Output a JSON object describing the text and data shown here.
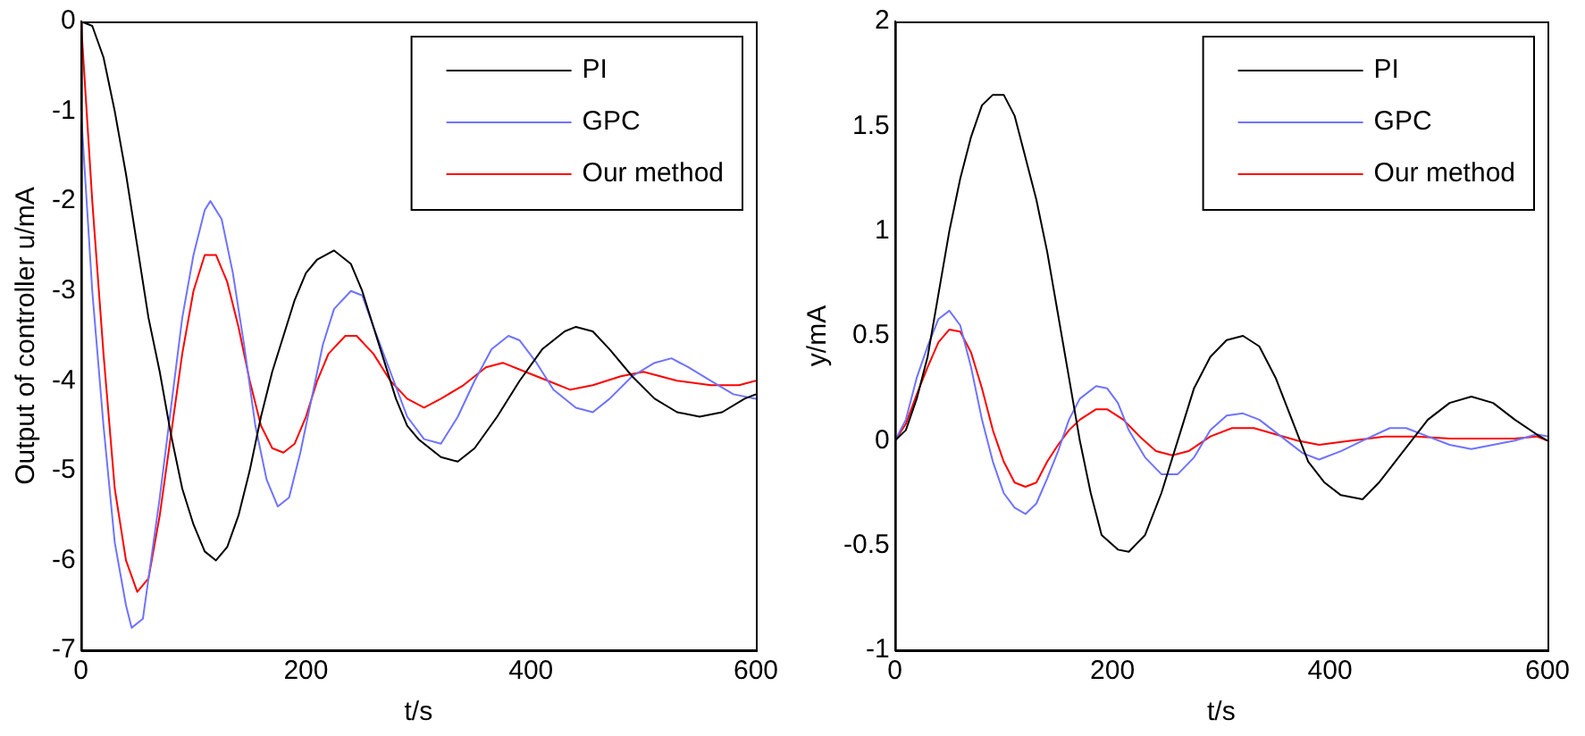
{
  "chart_data": [
    {
      "type": "line",
      "xlabel": "t/s",
      "ylabel": "Output of controller u/mA",
      "xlim": [
        0,
        600
      ],
      "xticks": [
        0,
        200,
        400,
        600
      ],
      "ylim": [
        -7,
        0
      ],
      "yticks": [
        -7,
        -6,
        -5,
        -4,
        -3,
        -2,
        -1,
        0
      ],
      "grid": false,
      "legend": "top right",
      "marker": "none",
      "series": [
        {
          "name": "PI",
          "color": "#000000",
          "x": [
            0,
            10,
            20,
            30,
            40,
            50,
            60,
            70,
            80,
            90,
            100,
            110,
            120,
            130,
            140,
            150,
            160,
            170,
            180,
            190,
            200,
            210,
            225,
            240,
            250,
            260,
            270,
            280,
            290,
            300,
            320,
            335,
            350,
            370,
            390,
            410,
            430,
            440,
            455,
            470,
            490,
            510,
            530,
            550,
            570,
            590,
            600
          ],
          "values": [
            0,
            -0.05,
            -0.4,
            -1.0,
            -1.7,
            -2.5,
            -3.3,
            -3.9,
            -4.6,
            -5.2,
            -5.6,
            -5.9,
            -6.0,
            -5.85,
            -5.5,
            -5.0,
            -4.4,
            -3.9,
            -3.5,
            -3.1,
            -2.8,
            -2.65,
            -2.55,
            -2.7,
            -3.0,
            -3.4,
            -3.8,
            -4.2,
            -4.5,
            -4.65,
            -4.85,
            -4.9,
            -4.75,
            -4.4,
            -4.0,
            -3.65,
            -3.45,
            -3.4,
            -3.45,
            -3.65,
            -3.95,
            -4.2,
            -4.35,
            -4.4,
            -4.35,
            -4.2,
            -4.15
          ]
        },
        {
          "name": "GPC",
          "color": "#6f73ff",
          "x": [
            0,
            5,
            10,
            20,
            30,
            40,
            45,
            55,
            60,
            70,
            80,
            90,
            100,
            110,
            115,
            125,
            135,
            145,
            155,
            165,
            175,
            185,
            195,
            205,
            215,
            225,
            240,
            250,
            260,
            275,
            290,
            305,
            320,
            335,
            350,
            365,
            380,
            390,
            405,
            420,
            440,
            455,
            470,
            490,
            510,
            525,
            540,
            560,
            580,
            600
          ],
          "values": [
            -1,
            -2,
            -3,
            -4.5,
            -5.8,
            -6.5,
            -6.75,
            -6.65,
            -6.2,
            -5.3,
            -4.3,
            -3.3,
            -2.6,
            -2.1,
            -2.0,
            -2.2,
            -2.8,
            -3.6,
            -4.5,
            -5.1,
            -5.4,
            -5.3,
            -4.8,
            -4.2,
            -3.6,
            -3.2,
            -3.0,
            -3.05,
            -3.4,
            -3.9,
            -4.4,
            -4.65,
            -4.7,
            -4.4,
            -4.0,
            -3.65,
            -3.5,
            -3.55,
            -3.8,
            -4.1,
            -4.3,
            -4.35,
            -4.2,
            -3.95,
            -3.8,
            -3.75,
            -3.85,
            -4.0,
            -4.15,
            -4.2
          ]
        },
        {
          "name": "Our method",
          "color": "#ff0000",
          "x": [
            0,
            5,
            10,
            20,
            30,
            40,
            50,
            60,
            70,
            80,
            90,
            100,
            110,
            120,
            130,
            140,
            150,
            160,
            170,
            180,
            190,
            200,
            210,
            220,
            235,
            245,
            260,
            275,
            290,
            305,
            320,
            340,
            360,
            375,
            395,
            415,
            435,
            455,
            480,
            500,
            530,
            560,
            585,
            600
          ],
          "values": [
            0,
            -1,
            -2,
            -3.7,
            -5.2,
            -6.0,
            -6.35,
            -6.2,
            -5.5,
            -4.6,
            -3.7,
            -3.0,
            -2.6,
            -2.6,
            -2.9,
            -3.4,
            -4.0,
            -4.5,
            -4.75,
            -4.8,
            -4.7,
            -4.4,
            -4.0,
            -3.7,
            -3.5,
            -3.5,
            -3.7,
            -4.0,
            -4.2,
            -4.3,
            -4.2,
            -4.05,
            -3.85,
            -3.8,
            -3.9,
            -4.0,
            -4.1,
            -4.05,
            -3.95,
            -3.9,
            -4.0,
            -4.05,
            -4.05,
            -4.0
          ]
        }
      ]
    },
    {
      "type": "line",
      "xlabel": "t/s",
      "ylabel": "y/mA",
      "xlim": [
        0,
        600
      ],
      "xticks": [
        0,
        200,
        400,
        600
      ],
      "ylim": [
        -1,
        2
      ],
      "yticks": [
        -1,
        -0.5,
        0,
        0.5,
        1,
        1.5,
        2
      ],
      "grid": false,
      "legend": "top right",
      "marker": "none",
      "series": [
        {
          "name": "PI",
          "color": "#000000",
          "x": [
            0,
            10,
            20,
            30,
            40,
            50,
            60,
            70,
            80,
            90,
            100,
            110,
            120,
            130,
            140,
            150,
            160,
            170,
            180,
            190,
            205,
            215,
            230,
            245,
            260,
            275,
            290,
            305,
            320,
            335,
            350,
            365,
            380,
            395,
            410,
            430,
            445,
            460,
            475,
            490,
            510,
            530,
            550,
            570,
            590,
            600
          ],
          "values": [
            0,
            0.05,
            0.2,
            0.4,
            0.7,
            1.0,
            1.25,
            1.45,
            1.6,
            1.65,
            1.65,
            1.55,
            1.35,
            1.15,
            0.9,
            0.6,
            0.3,
            0.0,
            -0.25,
            -0.45,
            -0.52,
            -0.53,
            -0.45,
            -0.25,
            0.0,
            0.25,
            0.4,
            0.48,
            0.5,
            0.45,
            0.3,
            0.1,
            -0.1,
            -0.2,
            -0.26,
            -0.28,
            -0.2,
            -0.1,
            0.0,
            0.1,
            0.18,
            0.21,
            0.18,
            0.1,
            0.03,
            0.0
          ]
        },
        {
          "name": "GPC",
          "color": "#6f73ff",
          "x": [
            0,
            10,
            20,
            30,
            40,
            50,
            60,
            70,
            80,
            90,
            100,
            110,
            120,
            130,
            140,
            150,
            160,
            170,
            185,
            195,
            205,
            215,
            230,
            245,
            260,
            275,
            290,
            305,
            320,
            335,
            355,
            375,
            390,
            410,
            430,
            455,
            470,
            490,
            510,
            530,
            550,
            570,
            590,
            600
          ],
          "values": [
            0,
            0.1,
            0.3,
            0.45,
            0.58,
            0.62,
            0.55,
            0.35,
            0.1,
            -0.1,
            -0.25,
            -0.32,
            -0.35,
            -0.3,
            -0.18,
            -0.05,
            0.1,
            0.2,
            0.26,
            0.25,
            0.18,
            0.05,
            -0.08,
            -0.16,
            -0.16,
            -0.08,
            0.05,
            0.12,
            0.13,
            0.1,
            0.02,
            -0.06,
            -0.09,
            -0.05,
            0.0,
            0.06,
            0.06,
            0.02,
            -0.02,
            -0.04,
            -0.02,
            0.0,
            0.03,
            0.02
          ]
        },
        {
          "name": "Our method",
          "color": "#ff0000",
          "x": [
            0,
            10,
            20,
            30,
            40,
            50,
            60,
            70,
            80,
            90,
            100,
            110,
            120,
            130,
            140,
            150,
            160,
            170,
            185,
            195,
            210,
            225,
            240,
            255,
            270,
            290,
            310,
            330,
            350,
            370,
            390,
            420,
            450,
            480,
            510,
            540,
            570,
            590,
            600
          ],
          "values": [
            0,
            0.08,
            0.22,
            0.35,
            0.47,
            0.53,
            0.52,
            0.42,
            0.25,
            0.05,
            -0.1,
            -0.2,
            -0.22,
            -0.2,
            -0.1,
            -0.02,
            0.05,
            0.1,
            0.15,
            0.15,
            0.1,
            0.02,
            -0.05,
            -0.07,
            -0.05,
            0.02,
            0.06,
            0.06,
            0.03,
            0.0,
            -0.02,
            0.0,
            0.02,
            0.02,
            0.01,
            0.01,
            0.01,
            0.02,
            0.0
          ]
        }
      ]
    }
  ]
}
